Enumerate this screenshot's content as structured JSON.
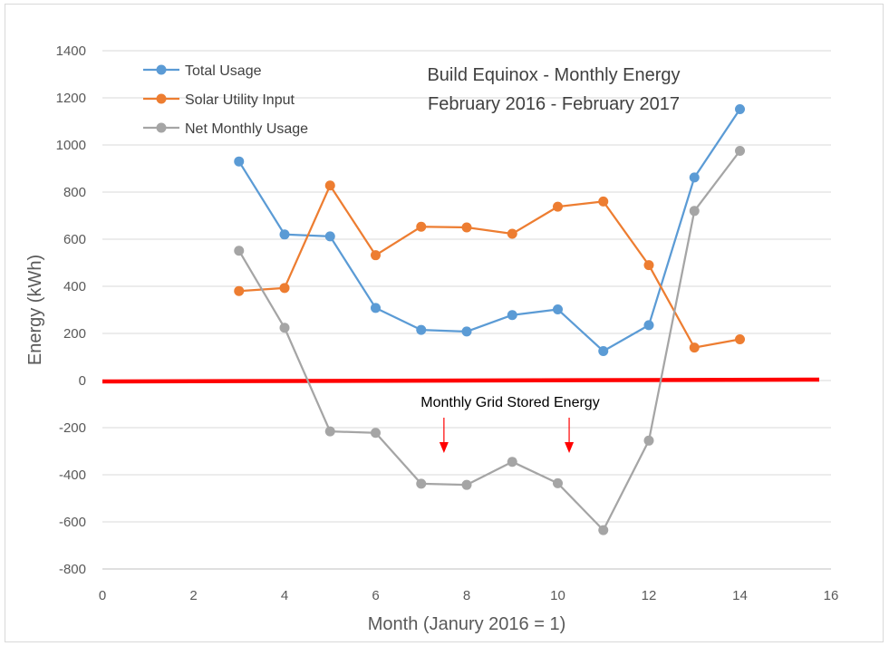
{
  "chart_data": {
    "type": "line",
    "title": [
      "Build Equinox - Monthly Energy",
      "February 2016 - February 2017"
    ],
    "xlabel": "Month (Janury 2016 = 1)",
    "ylabel": "Energy (kWh)",
    "xlim": [
      0,
      16
    ],
    "ylim": [
      -800,
      1400
    ],
    "x_ticks": [
      0,
      2,
      4,
      6,
      8,
      10,
      12,
      14,
      16
    ],
    "y_ticks": [
      -800,
      -600,
      -400,
      -200,
      0,
      200,
      400,
      600,
      800,
      1000,
      1200,
      1400
    ],
    "grid": "horizontal",
    "legend_position": "top-left",
    "x": [
      3,
      4,
      5,
      6,
      7,
      8,
      9,
      10,
      11,
      12,
      13,
      14
    ],
    "series": [
      {
        "name": "Total Usage",
        "color": "#5b9bd5",
        "values": [
          930,
          620,
          612,
          308,
          215,
          208,
          278,
          302,
          125,
          235,
          862,
          1152
        ]
      },
      {
        "name": "Solar Utility Input",
        "color": "#ed7d31",
        "values": [
          380,
          393,
          828,
          532,
          653,
          650,
          623,
          738,
          760,
          490,
          140,
          175
        ]
      },
      {
        "name": "Net Monthly Usage",
        "color": "#a5a5a5",
        "values": [
          551,
          224,
          -216,
          -222,
          -438,
          -443,
          -345,
          -436,
          -635,
          -255,
          720,
          975
        ]
      }
    ],
    "zero_line_color": "#ff0000",
    "annotation": {
      "text": "Monthly Grid Stored Energy",
      "arrow_x": [
        7.5,
        10.25
      ],
      "arrow_color": "#ff0000"
    }
  }
}
